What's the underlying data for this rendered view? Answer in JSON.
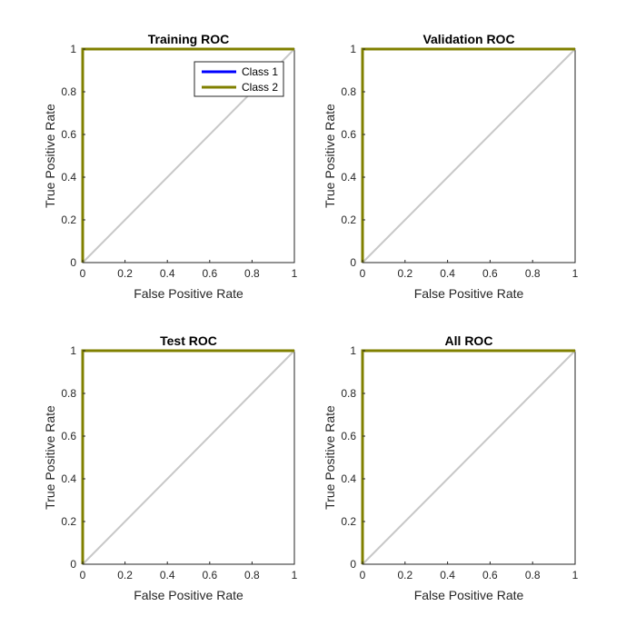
{
  "chart_data": [
    {
      "type": "line",
      "title": "Training ROC",
      "xlabel": "False Positive Rate",
      "ylabel": "True Positive Rate",
      "xlim": [
        0,
        1
      ],
      "ylim": [
        0,
        1
      ],
      "xticks": [
        "0",
        "0.2",
        "0.4",
        "0.6",
        "0.8",
        "1"
      ],
      "yticks": [
        "0",
        "0.2",
        "0.4",
        "0.6",
        "0.8",
        "1"
      ],
      "grid": false,
      "legend": {
        "placement": "top-right"
      },
      "series": [
        {
          "name": "Class 1",
          "color": "#0000ff",
          "x": [
            0,
            0,
            1
          ],
          "y": [
            0,
            1,
            1
          ]
        },
        {
          "name": "Class 2",
          "color": "#808000",
          "x": [
            0,
            0,
            1
          ],
          "y": [
            0,
            1,
            1
          ]
        }
      ],
      "reference_line": {
        "color": "#c8c8c8",
        "x": [
          0,
          1
        ],
        "y": [
          0,
          1
        ]
      }
    },
    {
      "type": "line",
      "title": "Validation ROC",
      "xlabel": "False Positive Rate",
      "ylabel": "True Positive Rate",
      "xlim": [
        0,
        1
      ],
      "ylim": [
        0,
        1
      ],
      "xticks": [
        "0",
        "0.2",
        "0.4",
        "0.6",
        "0.8",
        "1"
      ],
      "yticks": [
        "0",
        "0.2",
        "0.4",
        "0.6",
        "0.8",
        "1"
      ],
      "grid": false,
      "series": [
        {
          "color": "#0000ff",
          "x": [
            0,
            0,
            1
          ],
          "y": [
            0,
            1,
            1
          ]
        },
        {
          "color": "#808000",
          "x": [
            0,
            0,
            1
          ],
          "y": [
            0,
            1,
            1
          ]
        }
      ],
      "reference_line": {
        "color": "#c8c8c8",
        "x": [
          0,
          1
        ],
        "y": [
          0,
          1
        ]
      }
    },
    {
      "type": "line",
      "title": "Test ROC",
      "xlabel": "False Positive Rate",
      "ylabel": "True Positive Rate",
      "xlim": [
        0,
        1
      ],
      "ylim": [
        0,
        1
      ],
      "xticks": [
        "0",
        "0.2",
        "0.4",
        "0.6",
        "0.8",
        "1"
      ],
      "yticks": [
        "0",
        "0.2",
        "0.4",
        "0.6",
        "0.8",
        "1"
      ],
      "grid": false,
      "series": [
        {
          "color": "#0000ff",
          "x": [
            0,
            0,
            1
          ],
          "y": [
            0,
            1,
            1
          ]
        },
        {
          "color": "#808000",
          "x": [
            0,
            0,
            1
          ],
          "y": [
            0,
            1,
            1
          ]
        }
      ],
      "reference_line": {
        "color": "#c8c8c8",
        "x": [
          0,
          1
        ],
        "y": [
          0,
          1
        ]
      }
    },
    {
      "type": "line",
      "title": "All ROC",
      "xlabel": "False Positive Rate",
      "ylabel": "True Positive Rate",
      "xlim": [
        0,
        1
      ],
      "ylim": [
        0,
        1
      ],
      "xticks": [
        "0",
        "0.2",
        "0.4",
        "0.6",
        "0.8",
        "1"
      ],
      "yticks": [
        "0",
        "0.2",
        "0.4",
        "0.6",
        "0.8",
        "1"
      ],
      "grid": false,
      "series": [
        {
          "color": "#0000ff",
          "x": [
            0,
            0,
            1
          ],
          "y": [
            0,
            1,
            1
          ]
        },
        {
          "color": "#808000",
          "x": [
            0,
            0,
            1
          ],
          "y": [
            0,
            1,
            1
          ]
        }
      ],
      "reference_line": {
        "color": "#c8c8c8",
        "x": [
          0,
          1
        ],
        "y": [
          0,
          1
        ]
      }
    }
  ]
}
